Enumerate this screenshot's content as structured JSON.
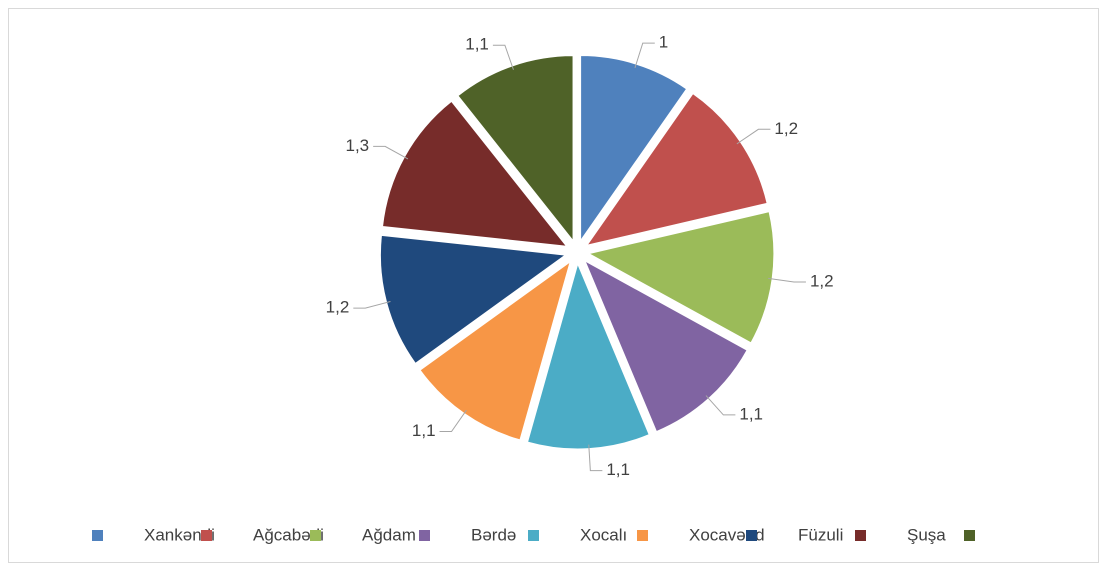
{
  "chart_data": {
    "type": "pie",
    "categories": [
      "Xankəndi",
      "Ağcabədi",
      "Ağdam",
      "Bərdə",
      "Xocalı",
      "Xocavənd",
      "Füzuli",
      "Şuşa",
      null
    ],
    "values": [
      1,
      1.2,
      1.2,
      1.1,
      1.1,
      1.1,
      1.2,
      1.3,
      1.1
    ],
    "value_labels": [
      "1",
      "1,2",
      "1,2",
      "1,1",
      "1,1",
      "1,1",
      "1,2",
      "1,3",
      "1,1"
    ],
    "colors": [
      "#4f81bd",
      "#c0504d",
      "#9bbb59",
      "#8064a2",
      "#4bacc6",
      "#f79646",
      "#1f497d",
      "#772c2a",
      "#4f6228"
    ],
    "legend": "bottom"
  }
}
